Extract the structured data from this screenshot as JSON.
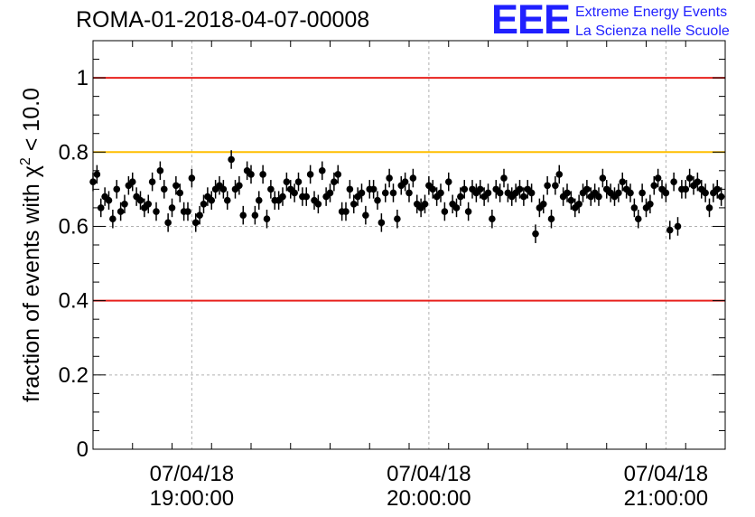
{
  "header": {
    "title": "ROMA-01-2018-04-07-00008",
    "logo_mark": "EEE",
    "logo_line1": "Extreme Energy Events",
    "logo_line2": "La Scienza nelle Scuole"
  },
  "colors": {
    "reference_red": "#e8211d",
    "reference_orange": "#ffbf00",
    "logo_blue": "#1f1fff",
    "markers": "#000000",
    "grid": "#b0b0b0"
  },
  "chart_data": {
    "type": "scatter",
    "title": "ROMA-01-2018-04-07-00008",
    "ylabel_prefix": "fraction of events with ",
    "ylabel_symbol": "χ",
    "ylabel_exponent": "2",
    "ylabel_suffix": " < 10.0",
    "xlabel": "",
    "ylim": [
      0,
      1.1
    ],
    "xlim": [
      "18:35",
      "21:15"
    ],
    "grid": true,
    "y_ticks": [
      "0",
      "0.2",
      "0.4",
      "0.6",
      "0.8",
      "1"
    ],
    "y_tick_values": [
      0,
      0.2,
      0.4,
      0.6,
      0.8,
      1.0
    ],
    "x_ticks": [
      {
        "time": "19:00",
        "date_label": "07/04/18",
        "time_label": "19:00:00"
      },
      {
        "time": "20:00",
        "date_label": "07/04/18",
        "time_label": "20:00:00"
      },
      {
        "time": "21:00",
        "date_label": "07/04/18",
        "time_label": "21:00:00"
      }
    ],
    "reference_lines": [
      {
        "y": 1.0,
        "color": "#e8211d"
      },
      {
        "y": 0.8,
        "color": "#ffbf00"
      },
      {
        "y": 0.4,
        "color": "#e8211d"
      }
    ],
    "series": [
      {
        "error": 0.025,
        "x": [
          "18:35",
          "18:36",
          "18:37",
          "18:38",
          "18:39",
          "18:40",
          "18:41",
          "18:42",
          "18:43",
          "18:44",
          "18:45",
          "18:46",
          "18:47",
          "18:48",
          "18:49",
          "18:50",
          "18:51",
          "18:52",
          "18:53",
          "18:54",
          "18:55",
          "18:56",
          "18:57",
          "18:58",
          "18:59",
          "19:00",
          "19:01",
          "19:02",
          "19:03",
          "19:04",
          "19:05",
          "19:06",
          "19:07",
          "19:08",
          "19:09",
          "19:10",
          "19:11",
          "19:12",
          "19:13",
          "19:14",
          "19:15",
          "19:16",
          "19:17",
          "19:18",
          "19:19",
          "19:20",
          "19:21",
          "19:22",
          "19:23",
          "19:24",
          "19:25",
          "19:26",
          "19:27",
          "19:28",
          "19:29",
          "19:30",
          "19:31",
          "19:32",
          "19:33",
          "19:34",
          "19:35",
          "19:36",
          "19:37",
          "19:38",
          "19:39",
          "19:40",
          "19:41",
          "19:42",
          "19:43",
          "19:44",
          "19:45",
          "19:46",
          "19:47",
          "19:48",
          "19:49",
          "19:50",
          "19:51",
          "19:52",
          "19:53",
          "19:54",
          "19:55",
          "19:56",
          "19:57",
          "19:58",
          "19:59",
          "20:00",
          "20:01",
          "20:02",
          "20:03",
          "20:04",
          "20:05",
          "20:06",
          "20:07",
          "20:08",
          "20:09",
          "20:10",
          "20:11",
          "20:12",
          "20:13",
          "20:14",
          "20:15",
          "20:16",
          "20:17",
          "20:18",
          "20:19",
          "20:20",
          "20:21",
          "20:22",
          "20:23",
          "20:24",
          "20:25",
          "20:26",
          "20:27",
          "20:28",
          "20:29",
          "20:30",
          "20:31",
          "20:32",
          "20:33",
          "20:34",
          "20:35",
          "20:36",
          "20:37",
          "20:38",
          "20:39",
          "20:40",
          "20:41",
          "20:42",
          "20:43",
          "20:44",
          "20:45",
          "20:46",
          "20:47",
          "20:48",
          "20:49",
          "20:50",
          "20:51",
          "20:52",
          "20:53",
          "20:54",
          "20:55",
          "20:56",
          "20:57",
          "20:58",
          "20:59",
          "21:00",
          "21:01",
          "21:02",
          "21:03",
          "21:04",
          "21:05",
          "21:06",
          "21:07",
          "21:08",
          "21:09",
          "21:10",
          "21:11",
          "21:12",
          "21:13",
          "21:14"
        ],
        "y": [
          0.72,
          0.74,
          0.65,
          0.68,
          0.67,
          0.62,
          0.7,
          0.64,
          0.66,
          0.71,
          0.72,
          0.68,
          0.67,
          0.65,
          0.66,
          0.72,
          0.64,
          0.75,
          0.7,
          0.61,
          0.65,
          0.71,
          0.69,
          0.64,
          0.64,
          0.73,
          0.61,
          0.63,
          0.66,
          0.68,
          0.67,
          0.7,
          0.71,
          0.7,
          0.67,
          0.78,
          0.7,
          0.71,
          0.63,
          0.75,
          0.74,
          0.63,
          0.67,
          0.74,
          0.62,
          0.7,
          0.67,
          0.67,
          0.68,
          0.72,
          0.7,
          0.69,
          0.72,
          0.68,
          0.68,
          0.74,
          0.67,
          0.66,
          0.75,
          0.68,
          0.69,
          0.72,
          0.74,
          0.64,
          0.64,
          0.7,
          0.66,
          0.68,
          0.69,
          0.63,
          0.7,
          0.7,
          0.67,
          0.61,
          0.69,
          0.73,
          0.69,
          0.62,
          0.71,
          0.72,
          0.69,
          0.73,
          0.66,
          0.65,
          0.66,
          0.71,
          0.7,
          0.68,
          0.69,
          0.64,
          0.72,
          0.66,
          0.65,
          0.68,
          0.7,
          0.64,
          0.7,
          0.69,
          0.7,
          0.68,
          0.69,
          0.62,
          0.7,
          0.69,
          0.73,
          0.69,
          0.68,
          0.69,
          0.7,
          0.68,
          0.7,
          0.69,
          0.58,
          0.65,
          0.66,
          0.71,
          0.62,
          0.71,
          0.74,
          0.68,
          0.69,
          0.67,
          0.65,
          0.66,
          0.69,
          0.7,
          0.68,
          0.69,
          0.68,
          0.73,
          0.7,
          0.69,
          0.68,
          0.69,
          0.72,
          0.7,
          0.69,
          0.65,
          0.62,
          0.69,
          0.65,
          0.66,
          0.71,
          0.73,
          0.7,
          0.69,
          0.59,
          0.72,
          0.6,
          0.7,
          0.7,
          0.73,
          0.71,
          0.72,
          0.7,
          0.69,
          0.65,
          0.69,
          0.7,
          0.68
        ]
      }
    ]
  }
}
